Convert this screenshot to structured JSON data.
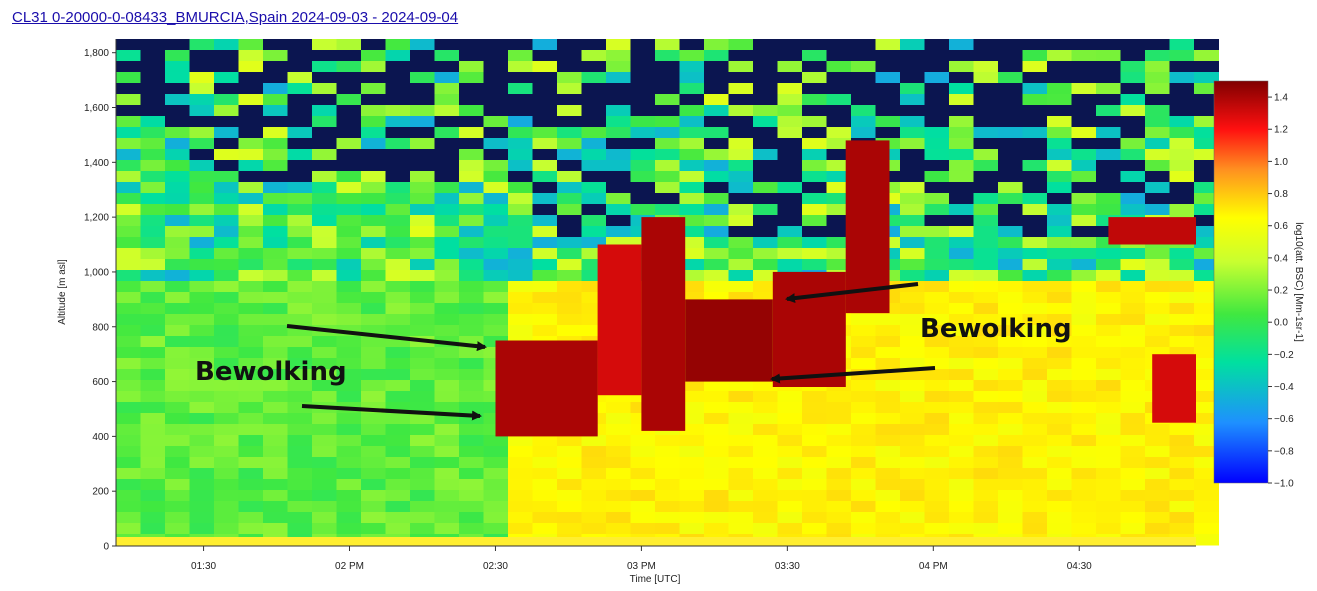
{
  "header": {
    "title": "CL31 0-20000-0-08433_BMURCIA,Spain 2024-09-03 - 2024-09-04"
  },
  "chart_data": {
    "type": "heatmap",
    "title": "CL31 0-20000-0-08433_BMURCIA,Spain 2024-09-03 - 2024-09-04",
    "xlabel": "Time [UTC]",
    "ylabel": "Altitude [m asl]",
    "colorbar_label": "log10(att. BSC) [Mm-1sr-1]",
    "x_ticks": [
      "01:30",
      "02 PM",
      "02:30",
      "03 PM",
      "03:30",
      "04 PM",
      "04:30"
    ],
    "y_ticks": [
      "0",
      "200",
      "400",
      "600",
      "800",
      "1,000",
      "1,200",
      "1,400",
      "1,600",
      "1,800"
    ],
    "colorbar_ticks": [
      "1.4",
      "1.2",
      "1.0",
      "0.8",
      "0.6",
      "0.4",
      "0.2",
      "0.0",
      "−0.2",
      "−0.4",
      "−0.6",
      "−0.8",
      "−1.0"
    ],
    "time_range_hours": [
      13.2,
      16.9
    ],
    "altitude_range_m": [
      0,
      1850
    ],
    "color_range": [
      -1.0,
      1.5
    ],
    "colors": {
      "nodata": "#0b1550",
      "low": "#1a1ad0",
      "mid": "#40e840",
      "high": "#ffff33",
      "peak": "#7a0000"
    },
    "cloud_layers": [
      {
        "start_h": 14.5,
        "end_h": 14.85,
        "base_m": 400,
        "top_m": 750,
        "value": 1.3
      },
      {
        "start_h": 14.85,
        "end_h": 15.0,
        "base_m": 550,
        "top_m": 1100,
        "value": 1.1
      },
      {
        "start_h": 15.0,
        "end_h": 15.15,
        "base_m": 420,
        "top_m": 1200,
        "value": 1.3
      },
      {
        "start_h": 15.15,
        "end_h": 15.45,
        "base_m": 600,
        "top_m": 900,
        "value": 1.4
      },
      {
        "start_h": 15.45,
        "end_h": 15.7,
        "base_m": 580,
        "top_m": 1000,
        "value": 1.3
      },
      {
        "start_h": 15.7,
        "end_h": 15.85,
        "base_m": 850,
        "top_m": 1480,
        "value": 1.3
      },
      {
        "start_h": 16.75,
        "end_h": 16.9,
        "base_m": 450,
        "top_m": 700,
        "value": 1.1
      },
      {
        "start_h": 16.6,
        "end_h": 16.9,
        "base_m": 1100,
        "top_m": 1200,
        "value": 1.2
      }
    ],
    "annotations": [
      {
        "text": "Bewolking",
        "side": "left"
      },
      {
        "text": "Bewolking",
        "side": "right"
      }
    ]
  }
}
